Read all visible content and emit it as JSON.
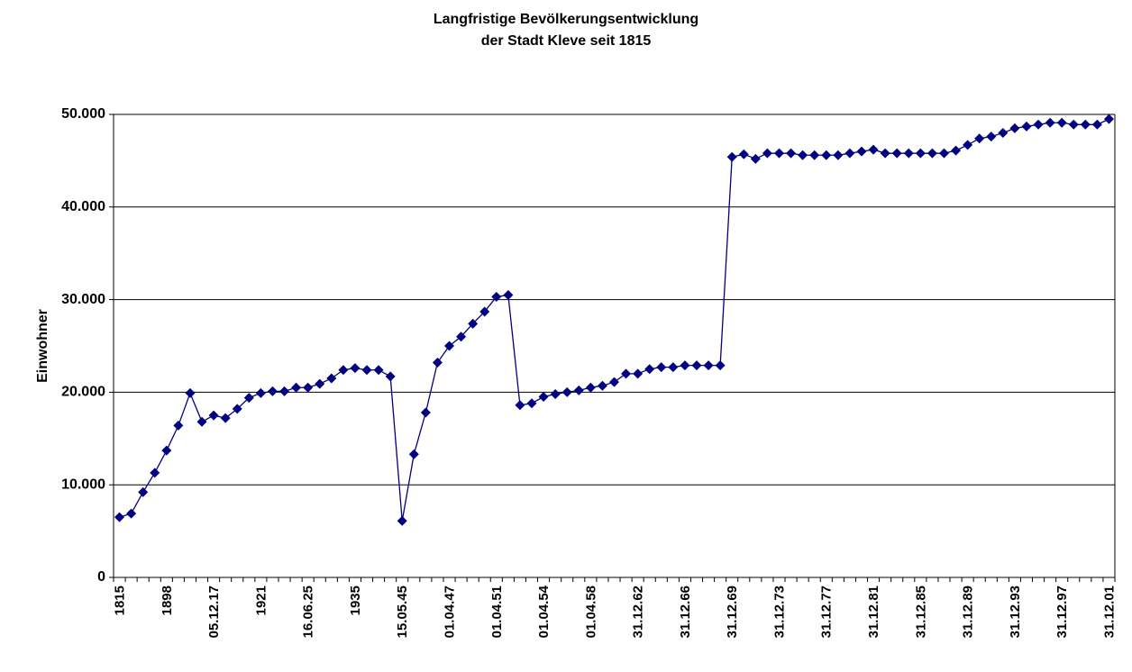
{
  "chart_data": {
    "type": "line",
    "title": "Langfristige Bevölkerungsentwicklung",
    "subtitle": "der Stadt Kleve seit 1815",
    "y_label": "Einwohner",
    "categories": [
      "1815",
      null,
      null,
      null,
      "1898",
      null,
      null,
      null,
      "05.12.17",
      null,
      null,
      null,
      "1921",
      null,
      null,
      null,
      "16.06.25",
      null,
      null,
      null,
      "1935",
      null,
      null,
      null,
      "15.05.45",
      null,
      null,
      null,
      "01.04.47",
      null,
      null,
      null,
      "01.04.51",
      null,
      null,
      null,
      "01.04.54",
      null,
      null,
      null,
      "01.04.58",
      null,
      null,
      null,
      "31.12.62",
      null,
      null,
      null,
      "31.12.66",
      null,
      null,
      null,
      "31.12.69",
      null,
      null,
      null,
      "31.12.73",
      null,
      null,
      null,
      "31.12.77",
      null,
      null,
      null,
      "31.12.81",
      null,
      null,
      null,
      "31.12.85",
      null,
      null,
      null,
      "31.12.89",
      null,
      null,
      null,
      "31.12.93",
      null,
      null,
      null,
      "31.12.97",
      null,
      null,
      null,
      "31.12.01"
    ],
    "series": [
      {
        "name": "Einwohner",
        "color": "#000080",
        "values": [
          6500,
          6900,
          9200,
          11300,
          13700,
          16400,
          19900,
          16800,
          17500,
          17200,
          18200,
          19400,
          19900,
          20100,
          20100,
          20500,
          20500,
          20900,
          21500,
          22400,
          22600,
          22400,
          22400,
          21700,
          6100,
          13300,
          17800,
          23200,
          25000,
          26000,
          27400,
          28700,
          30300,
          30500,
          18600,
          18800,
          19500,
          19800,
          20000,
          20200,
          20500,
          20700,
          21100,
          22000,
          22000,
          22500,
          22700,
          22700,
          22900,
          22900,
          22900,
          22900,
          45400,
          45700,
          45200,
          45800,
          45800,
          45800,
          45600,
          45600,
          45600,
          45600,
          45800,
          46000,
          46200,
          45800,
          45800,
          45800,
          45800,
          45800,
          45800,
          46100,
          46700,
          47400,
          47600,
          48000,
          48500,
          48700,
          48900,
          49100,
          49100,
          48900,
          48900,
          48900,
          49500
        ]
      }
    ],
    "ylim": [
      0,
      50000
    ],
    "yticks": [
      0,
      {
        "value": 10000,
        "label": "10.000"
      },
      {
        "value": 20000,
        "label": "20.000"
      },
      {
        "value": 30000,
        "label": "30.000"
      },
      {
        "value": 40000,
        "label": "40.000"
      },
      {
        "value": 50000,
        "label": "50.000"
      }
    ],
    "grid": true
  }
}
